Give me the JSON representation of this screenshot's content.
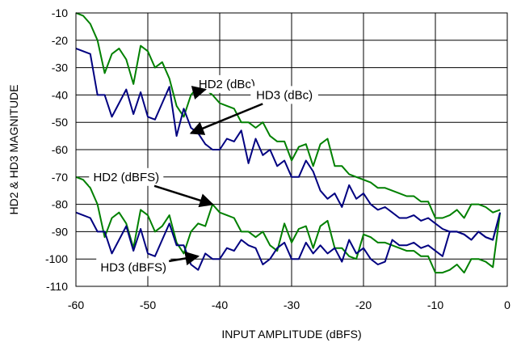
{
  "chart_data": {
    "type": "line",
    "title": "",
    "xlabel": "INPUT AMPLITUDE (dBFS)",
    "ylabel": "HD2 & HD3 MAGNITUDE",
    "xlim": [
      -60,
      0
    ],
    "ylim": [
      -110,
      -10
    ],
    "xticks": [
      -60,
      -50,
      -40,
      -30,
      -20,
      -10,
      0
    ],
    "yticks": [
      -10,
      -20,
      -30,
      -40,
      -50,
      -60,
      -70,
      -80,
      -90,
      -100,
      -110
    ],
    "grid": true,
    "legend": "none",
    "series": [
      {
        "name": "HD2 (dBc)",
        "color": "#008000",
        "x": [
          -60,
          -59,
          -58,
          -57,
          -56,
          -55,
          -54,
          -53,
          -52,
          -51,
          -50,
          -49,
          -48,
          -47,
          -46,
          -45,
          -44,
          -43,
          -42,
          -41,
          -40,
          -39,
          -38,
          -37,
          -36,
          -35,
          -34,
          -33,
          -32,
          -31,
          -30,
          -29,
          -28,
          -27,
          -26,
          -25,
          -24,
          -23,
          -22,
          -21,
          -20,
          -19,
          -18,
          -17,
          -16,
          -15,
          -14,
          -13,
          -12,
          -11,
          -10,
          -9,
          -8,
          -7,
          -6,
          -5,
          -4,
          -3,
          -2,
          -1
        ],
        "y": [
          -10,
          -11,
          -14,
          -20,
          -32,
          -25,
          -23,
          -27,
          -36,
          -22,
          -24,
          -30,
          -28,
          -34,
          -44,
          -48,
          -40,
          -37,
          -38,
          -40,
          -43,
          -44,
          -45,
          -50,
          -50,
          -52,
          -50,
          -55,
          -57,
          -57,
          -64,
          -59,
          -58,
          -66,
          -58,
          -56,
          -66,
          -66,
          -69,
          -70,
          -71,
          -72,
          -74,
          -74,
          -75,
          -76,
          -77,
          -77,
          -79,
          -79,
          -85,
          -85,
          -84,
          -82,
          -85,
          -80,
          -80,
          -81,
          -83,
          -82
        ]
      },
      {
        "name": "HD3 (dBc)",
        "color": "#000080",
        "x": [
          -60,
          -59,
          -58,
          -57,
          -56,
          -55,
          -54,
          -53,
          -52,
          -51,
          -50,
          -49,
          -48,
          -47,
          -46,
          -45,
          -44,
          -43,
          -42,
          -41,
          -40,
          -39,
          -38,
          -37,
          -36,
          -35,
          -34,
          -33,
          -32,
          -31,
          -30,
          -29,
          -28,
          -27,
          -26,
          -25,
          -24,
          -23,
          -22,
          -21,
          -20,
          -19,
          -18,
          -17,
          -16,
          -15,
          -14,
          -13,
          -12,
          -11,
          -10,
          -9,
          -8,
          -7,
          -6,
          -5,
          -4,
          -3,
          -2,
          -1
        ],
        "y": [
          -23,
          -24,
          -25,
          -40,
          -40,
          -48,
          -43,
          -38,
          -47,
          -39,
          -48,
          -49,
          -43,
          -37,
          -55,
          -45,
          -52,
          -54,
          -58,
          -60,
          -60,
          -56,
          -57,
          -53,
          -65,
          -56,
          -62,
          -60,
          -66,
          -64,
          -70,
          -70,
          -64,
          -68,
          -75,
          -78,
          -76,
          -81,
          -73,
          -78,
          -76,
          -80,
          -82,
          -81,
          -83,
          -85,
          -85,
          -84,
          -86,
          -85,
          -87,
          -89,
          -90,
          -90,
          -91,
          -93,
          -90,
          -92,
          -93,
          -83
        ]
      },
      {
        "name": "HD2 (dBFS)",
        "color": "#008000",
        "x": [
          -60,
          -59,
          -58,
          -57,
          -56,
          -55,
          -54,
          -53,
          -52,
          -51,
          -50,
          -49,
          -48,
          -47,
          -46,
          -45,
          -44,
          -43,
          -42,
          -41,
          -40,
          -39,
          -38,
          -37,
          -36,
          -35,
          -34,
          -33,
          -32,
          -31,
          -30,
          -29,
          -28,
          -27,
          -26,
          -25,
          -24,
          -23,
          -22,
          -21,
          -20,
          -19,
          -18,
          -17,
          -16,
          -15,
          -14,
          -13,
          -12,
          -11,
          -10,
          -9,
          -8,
          -7,
          -6,
          -5,
          -4,
          -3,
          -2,
          -1
        ],
        "y": [
          -70,
          -71,
          -74,
          -80,
          -92,
          -85,
          -83,
          -87,
          -96,
          -82,
          -84,
          -90,
          -88,
          -84,
          -94,
          -98,
          -90,
          -87,
          -88,
          -80,
          -83,
          -84,
          -85,
          -90,
          -90,
          -92,
          -90,
          -95,
          -97,
          -87,
          -94,
          -89,
          -88,
          -96,
          -88,
          -86,
          -96,
          -96,
          -99,
          -100,
          -91,
          -92,
          -94,
          -94,
          -95,
          -96,
          -97,
          -97,
          -99,
          -99,
          -105,
          -105,
          -104,
          -102,
          -105,
          -100,
          -100,
          -101,
          -103,
          -83
        ]
      },
      {
        "name": "HD3 (dBFS)",
        "color": "#000080",
        "x": [
          -60,
          -59,
          -58,
          -57,
          -56,
          -55,
          -54,
          -53,
          -52,
          -51,
          -50,
          -49,
          -48,
          -47,
          -46,
          -45,
          -44,
          -43,
          -42,
          -41,
          -40,
          -39,
          -38,
          -37,
          -36,
          -35,
          -34,
          -33,
          -32,
          -31,
          -30,
          -29,
          -28,
          -27,
          -26,
          -25,
          -24,
          -23,
          -22,
          -21,
          -20,
          -19,
          -18,
          -17,
          -16,
          -15,
          -14,
          -13,
          -12,
          -11,
          -10,
          -9,
          -8,
          -7,
          -6,
          -5,
          -4,
          -3,
          -2,
          -1
        ],
        "y": [
          -83,
          -84,
          -85,
          -90,
          -90,
          -98,
          -93,
          -88,
          -97,
          -89,
          -98,
          -99,
          -93,
          -87,
          -95,
          -95,
          -102,
          -104,
          -98,
          -100,
          -100,
          -96,
          -97,
          -93,
          -95,
          -96,
          -102,
          -100,
          -96,
          -94,
          -100,
          -100,
          -94,
          -98,
          -95,
          -98,
          -96,
          -101,
          -93,
          -98,
          -96,
          -100,
          -102,
          -101,
          -93,
          -95,
          -95,
          -94,
          -96,
          -95,
          -97,
          -99,
          -90,
          -90,
          -91,
          -93,
          -90,
          -92,
          -93,
          -83
        ]
      }
    ],
    "annotations": [
      {
        "text": "HD2 (dBc)",
        "x": -39,
        "y": -36,
        "arrow_to": {
          "x": -42,
          "y": -38
        }
      },
      {
        "text": "HD3 (dBc)",
        "x": -31,
        "y": -40,
        "arrow_to": {
          "x": -44,
          "y": -54
        }
      },
      {
        "text": "HD2 (dBFS)",
        "x": -53,
        "y": -70,
        "arrow_to": {
          "x": -41,
          "y": -80
        }
      },
      {
        "text": "HD3 (dBFS)",
        "x": -52,
        "y": -103,
        "arrow_to": {
          "x": -43,
          "y": -99
        }
      }
    ]
  }
}
